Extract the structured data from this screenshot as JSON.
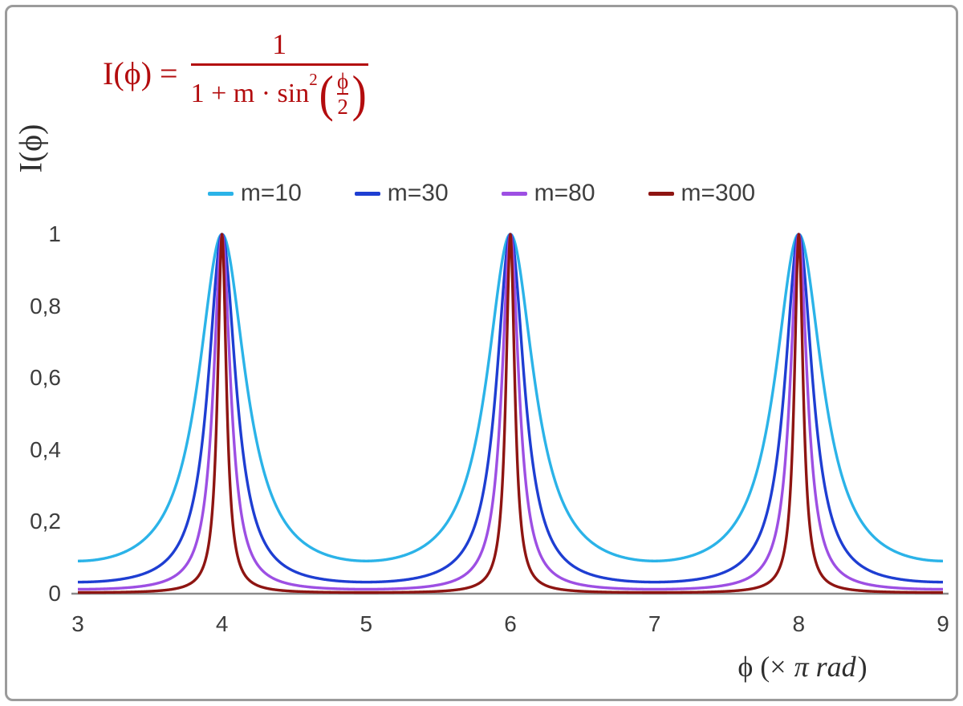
{
  "frame": {
    "border_color": "#9b9b9b",
    "background": "#ffffff"
  },
  "formula": {
    "lhs": "I(ϕ) =",
    "numerator": "1",
    "den_prefix": "1 + m · sin",
    "den_sup": "2",
    "paren_open": "(",
    "paren_close": ")",
    "inner_num": "ϕ",
    "inner_den": "2",
    "color": "#b30c0e"
  },
  "y_axis": {
    "label": "I(ϕ)",
    "ticks": [
      "0",
      "0,2",
      "0,4",
      "0,6",
      "0,8",
      "1"
    ]
  },
  "x_axis": {
    "label_prefix": "ϕ  (×",
    "label_italic": "π rad",
    "label_suffix": ")",
    "ticks": [
      "3",
      "4",
      "5",
      "6",
      "7",
      "8",
      "9"
    ]
  },
  "chart_data": {
    "type": "line",
    "function": "I(phi) = 1 / (1 + m * sin^2(phi/2))",
    "x_unit": "pi rad (x axis value is phi in multiples of pi)",
    "title": "",
    "xlabel": "ϕ (× π rad)",
    "ylabel": "I(ϕ)",
    "xlim": [
      3,
      9
    ],
    "ylim": [
      0,
      1
    ],
    "x_ticks": [
      3,
      4,
      5,
      6,
      7,
      8,
      9
    ],
    "y_ticks": [
      0,
      0.2,
      0.4,
      0.6,
      0.8,
      1
    ],
    "peaks_at_x": [
      4,
      6,
      8
    ],
    "grid": false,
    "legend_position": "top-center",
    "axis_color": "#8a8a8a",
    "text_color": "#3d3d3d",
    "series": [
      {
        "name": "m=10",
        "m": 10,
        "color": "#2bb3e8"
      },
      {
        "name": "m=30",
        "m": 30,
        "color": "#1e3ed2"
      },
      {
        "name": "m=80",
        "m": 80,
        "color": "#9d4fe3"
      },
      {
        "name": "m=300",
        "m": 300,
        "color": "#8e1512"
      }
    ]
  }
}
